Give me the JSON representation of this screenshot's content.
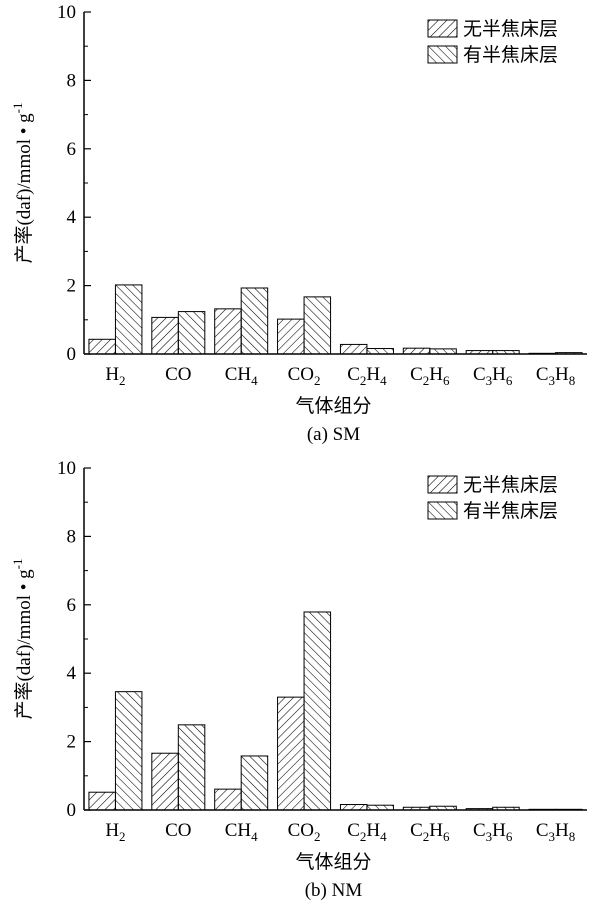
{
  "charts": [
    {
      "caption": "(a) SM",
      "chart_data": {
        "type": "bar",
        "categories": [
          "H2",
          "CO",
          "CH4",
          "CO2",
          "C2H4",
          "C2H6",
          "C3H6",
          "C3H8"
        ],
        "category_labels": [
          {
            "base": "H",
            "sub": "2",
            "base2": "",
            "sub2": ""
          },
          {
            "base": "CO",
            "sub": "",
            "base2": "",
            "sub2": ""
          },
          {
            "base": "CH",
            "sub": "4",
            "base2": "",
            "sub2": ""
          },
          {
            "base": "CO",
            "sub": "2",
            "base2": "",
            "sub2": ""
          },
          {
            "base": "C",
            "sub": "2",
            "base2": "H",
            "sub2": "4"
          },
          {
            "base": "C",
            "sub": "2",
            "base2": "H",
            "sub2": "6"
          },
          {
            "base": "C",
            "sub": "3",
            "base2": "H",
            "sub2": "6"
          },
          {
            "base": "C",
            "sub": "3",
            "base2": "H",
            "sub2": "8"
          }
        ],
        "series": [
          {
            "name": "无半焦床层",
            "hatch": "diag-right",
            "values": [
              0.43,
              1.07,
              1.32,
              1.02,
              0.28,
              0.17,
              0.1,
              0.02
            ]
          },
          {
            "name": "有半焦床层",
            "hatch": "diag-left",
            "values": [
              2.02,
              1.24,
              1.93,
              1.67,
              0.16,
              0.15,
              0.1,
              0.04
            ]
          }
        ],
        "xlabel": "气体组分",
        "ylabel": "产率(daf)/mmol • g",
        "ylabel_sup": "-1",
        "ylim": [
          0,
          10
        ],
        "yticks": [
          0,
          2,
          4,
          6,
          8,
          10
        ],
        "grid": false,
        "legend_position": "top-right"
      }
    },
    {
      "caption": "(b) NM",
      "chart_data": {
        "type": "bar",
        "categories": [
          "H2",
          "CO",
          "CH4",
          "CO2",
          "C2H4",
          "C2H6",
          "C3H6",
          "C3H8"
        ],
        "category_labels": [
          {
            "base": "H",
            "sub": "2",
            "base2": "",
            "sub2": ""
          },
          {
            "base": "CO",
            "sub": "",
            "base2": "",
            "sub2": ""
          },
          {
            "base": "CH",
            "sub": "4",
            "base2": "",
            "sub2": ""
          },
          {
            "base": "CO",
            "sub": "2",
            "base2": "",
            "sub2": ""
          },
          {
            "base": "C",
            "sub": "2",
            "base2": "H",
            "sub2": "4"
          },
          {
            "base": "C",
            "sub": "2",
            "base2": "H",
            "sub2": "6"
          },
          {
            "base": "C",
            "sub": "3",
            "base2": "H",
            "sub2": "6"
          },
          {
            "base": "C",
            "sub": "3",
            "base2": "H",
            "sub2": "8"
          }
        ],
        "series": [
          {
            "name": "无半焦床层",
            "hatch": "diag-right",
            "values": [
              0.52,
              1.66,
              0.61,
              3.3,
              0.16,
              0.08,
              0.04,
              0.02
            ]
          },
          {
            "name": "有半焦床层",
            "hatch": "diag-left",
            "values": [
              3.46,
              2.49,
              1.58,
              5.79,
              0.14,
              0.11,
              0.08,
              0.02
            ]
          }
        ],
        "xlabel": "气体组分",
        "ylabel": "产率(daf)/mmol • g",
        "ylabel_sup": "-1",
        "ylim": [
          0,
          10
        ],
        "yticks": [
          0,
          2,
          4,
          6,
          8,
          10
        ],
        "grid": false,
        "legend_position": "top-right"
      }
    }
  ]
}
